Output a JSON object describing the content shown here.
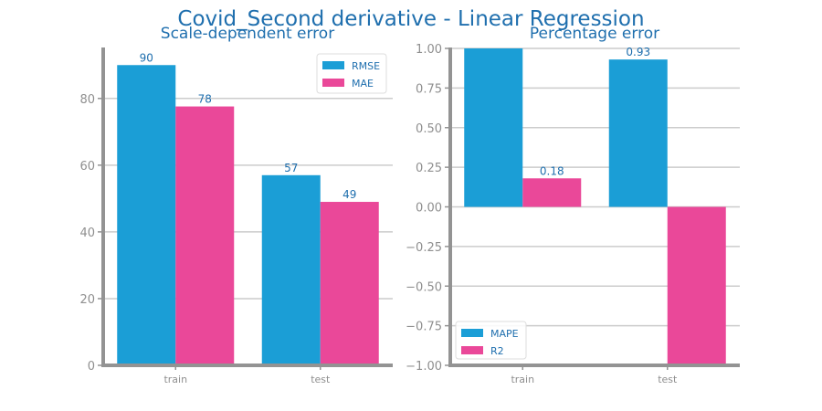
{
  "figure": {
    "title": "Covid_Second derivative - Linear Regression"
  },
  "colors": {
    "title": "#1f6fae",
    "axis": "#939393",
    "grid": "#cccccc",
    "tick_label": "#8f8f8f",
    "value_label": "#1f6fae",
    "blue": "#1b9ed6",
    "pink": "#ea4899",
    "legend_text": "#1f6fae"
  },
  "chart_data": [
    {
      "type": "bar",
      "title": "Scale-dependent error",
      "xlabel": "",
      "ylabel": "",
      "categories": [
        "train",
        "test"
      ],
      "series": [
        {
          "name": "RMSE",
          "color": "#1b9ed6",
          "values": [
            90,
            57
          ],
          "value_labels": [
            "90",
            "57"
          ]
        },
        {
          "name": "MAE",
          "color": "#ea4899",
          "values": [
            77.6,
            49
          ],
          "value_labels": [
            "78",
            "49"
          ]
        }
      ],
      "ylim": [
        0,
        95
      ],
      "yticks": [
        0,
        20,
        40,
        60,
        80
      ],
      "ytick_labels": [
        "0",
        "20",
        "40",
        "60",
        "80"
      ],
      "grid": "horizontal",
      "legend_position": "top-right"
    },
    {
      "type": "bar",
      "title": "Percentage error",
      "xlabel": "",
      "ylabel": "",
      "categories": [
        "train",
        "test"
      ],
      "series": [
        {
          "name": "MAPE",
          "color": "#1b9ed6",
          "values": [
            1.0,
            0.93
          ],
          "value_labels": [
            "",
            "0.93"
          ]
        },
        {
          "name": "R2",
          "color": "#ea4899",
          "values": [
            0.18,
            -1.0
          ],
          "value_labels": [
            "0.18",
            ""
          ]
        }
      ],
      "ylim": [
        -1.0,
        1.0
      ],
      "yticks": [
        -1.0,
        -0.75,
        -0.5,
        -0.25,
        0.0,
        0.25,
        0.5,
        0.75,
        1.0
      ],
      "ytick_labels": [
        "−1.00",
        "−0.75",
        "−0.50",
        "−0.25",
        "0.00",
        "0.25",
        "0.50",
        "0.75",
        "1.00"
      ],
      "grid": "horizontal",
      "legend_position": "bottom-left"
    }
  ]
}
